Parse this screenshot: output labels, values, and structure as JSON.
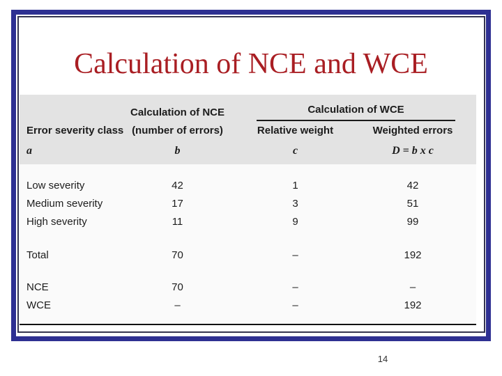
{
  "slide": {
    "title": "Calculation of NCE and WCE",
    "page_number": "14",
    "colors": {
      "frame_border": "#2e3092",
      "inner_border": "#34344f",
      "title_text": "#a91e23",
      "table_header_bg": "#e3e3e3",
      "table_rule": "#111111"
    }
  },
  "table": {
    "header": {
      "col_a_title": "Error severity class",
      "col_a_sub": "a",
      "nce_group_title": "Calculation of NCE",
      "col_b_title": "(number of errors)",
      "col_b_sub": "b",
      "wce_group_title": "Calculation of WCE",
      "col_c_title": "Relative weight",
      "col_c_sub": "c",
      "col_d_title": "Weighted errors",
      "col_d_sub": "D = b x c"
    },
    "severity_rows": [
      {
        "label": "Low severity",
        "b": "42",
        "c": "1",
        "d": "42"
      },
      {
        "label": "Medium severity",
        "b": "17",
        "c": "3",
        "d": "51"
      },
      {
        "label": "High severity",
        "b": "11",
        "c": "9",
        "d": "99"
      }
    ],
    "total_row": {
      "label": "Total",
      "b": "70",
      "c": "–",
      "d": "192"
    },
    "result_rows": [
      {
        "label": "NCE",
        "b": "70",
        "c": "–",
        "d": "–"
      },
      {
        "label": "WCE",
        "b": "–",
        "c": "–",
        "d": "192"
      }
    ]
  }
}
